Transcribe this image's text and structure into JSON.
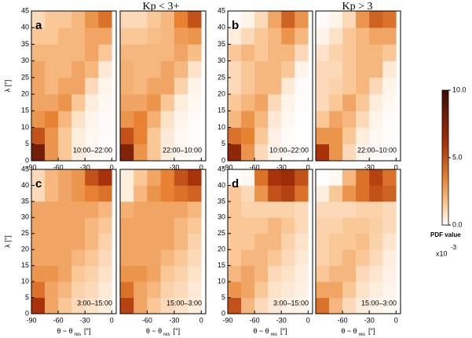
{
  "titles": [
    "Kp < 3+",
    "Kp > 3"
  ],
  "colorbar": {
    "zlim": [
      0,
      10
    ],
    "ticks": [
      {
        "value": 0,
        "label": "0.0"
      },
      {
        "value": 5,
        "label": "5.0"
      },
      {
        "value": 10,
        "label": "10.0"
      }
    ],
    "label": "PDF value",
    "unit_base": "x10",
    "unit_exp": "-3"
  },
  "chart_data": [
    {
      "type": "heatmap",
      "panel_label": "a",
      "annotation": "10:00–22:00",
      "y_label": "λ [°]",
      "xlim": [
        -90,
        5
      ],
      "ylim": [
        0,
        45
      ],
      "xticks": [
        -90,
        -60,
        -30,
        0
      ],
      "yticks": [
        0,
        5,
        10,
        15,
        20,
        25,
        30,
        35,
        40,
        45
      ],
      "xbins": [
        -90,
        -75,
        -60,
        -45,
        -30,
        -15,
        0
      ],
      "ybins": [
        0,
        5,
        10,
        15,
        20,
        25,
        30,
        35,
        40,
        45
      ],
      "z": [
        [
          8,
          3,
          1.5,
          0.5,
          0.2,
          0.1
        ],
        [
          5,
          3,
          1.5,
          0.5,
          0.2,
          0.1
        ],
        [
          3,
          3.5,
          2,
          0.8,
          0.3,
          0.1
        ],
        [
          2.5,
          2.5,
          3,
          1.5,
          0.5,
          0.2
        ],
        [
          2.5,
          2,
          2.5,
          2.5,
          1,
          0.3
        ],
        [
          2.5,
          2,
          2,
          2.5,
          2,
          0.6
        ],
        [
          2,
          2,
          2,
          2,
          2.5,
          1.5
        ],
        [
          1.5,
          1.5,
          2,
          2,
          2.5,
          2.5
        ],
        [
          1,
          1.5,
          1.5,
          2,
          3,
          4
        ]
      ]
    },
    {
      "type": "heatmap",
      "annotation": "22:00–10:00",
      "xlim": [
        -90,
        5
      ],
      "ylim": [
        0,
        45
      ],
      "xticks": [
        -30,
        0
      ],
      "xbins": [
        -90,
        -75,
        -60,
        -45,
        -30,
        -15,
        0
      ],
      "ybins": [
        0,
        5,
        10,
        15,
        20,
        25,
        30,
        35,
        40,
        45
      ],
      "z": [
        [
          7.5,
          3,
          1.5,
          0.5,
          0.2,
          0.1
        ],
        [
          5,
          3.5,
          1.5,
          0.6,
          0.2,
          0.1
        ],
        [
          3,
          3.5,
          2.2,
          0.8,
          0.3,
          0.1
        ],
        [
          2.5,
          2.5,
          3,
          1.5,
          0.5,
          0.2
        ],
        [
          2.2,
          2,
          2.5,
          2.5,
          1.2,
          0.3
        ],
        [
          2.2,
          2,
          2,
          2.5,
          2,
          0.8
        ],
        [
          2,
          2,
          2,
          2,
          2.5,
          1.8
        ],
        [
          1.5,
          1.5,
          1.8,
          2,
          2.8,
          3
        ],
        [
          1,
          1,
          1.5,
          2,
          3.5,
          5
        ]
      ]
    },
    {
      "type": "heatmap",
      "panel_label": "b",
      "annotation": "10:00–22:00",
      "y_label": "λ [°]",
      "xlim": [
        -90,
        5
      ],
      "ylim": [
        0,
        45
      ],
      "xticks": [
        -90,
        -60,
        -30,
        0
      ],
      "yticks": [
        0,
        5,
        10,
        15,
        20,
        25,
        30,
        35,
        40,
        45
      ],
      "xbins": [
        -90,
        -75,
        -60,
        -45,
        -30,
        -15,
        0
      ],
      "ybins": [
        0,
        5,
        10,
        15,
        20,
        25,
        30,
        35,
        40,
        45
      ],
      "z": [
        [
          7,
          3,
          1,
          0.3,
          0.1,
          0
        ],
        [
          4,
          3.5,
          1.5,
          0.4,
          0.1,
          0
        ],
        [
          2,
          3,
          2,
          0.6,
          0.2,
          0
        ],
        [
          1.5,
          2,
          2.5,
          1,
          0.3,
          0.1
        ],
        [
          1,
          1.5,
          2,
          2,
          0.6,
          0.1
        ],
        [
          1,
          1.5,
          2,
          2,
          1.5,
          0.3
        ],
        [
          1.5,
          2,
          1.5,
          2,
          2,
          1
        ],
        [
          0.5,
          1,
          1.5,
          2,
          3,
          2
        ],
        [
          0.1,
          0.3,
          1,
          2.5,
          4.5,
          3
        ]
      ]
    },
    {
      "type": "heatmap",
      "annotation": "22:00–10:00",
      "xlim": [
        -90,
        5
      ],
      "ylim": [
        0,
        45
      ],
      "xticks": [
        -30,
        0
      ],
      "xbins": [
        -90,
        -75,
        -60,
        -45,
        -30,
        -15,
        0
      ],
      "ybins": [
        0,
        5,
        10,
        15,
        20,
        25,
        30,
        35,
        40,
        45
      ],
      "z": [
        [
          6,
          3,
          1,
          0.3,
          0.1,
          0
        ],
        [
          3,
          3,
          1.5,
          0.5,
          0.2,
          0.1
        ],
        [
          1.5,
          2.5,
          2,
          1,
          0.3,
          0.1
        ],
        [
          1,
          1.5,
          2.5,
          1.5,
          0.5,
          0.2
        ],
        [
          1,
          1.2,
          1.5,
          2,
          1,
          0.3
        ],
        [
          1,
          1,
          1.5,
          2,
          2,
          0.6
        ],
        [
          0.8,
          1.2,
          1.5,
          2,
          2,
          1.5
        ],
        [
          0.3,
          0.8,
          1.5,
          2,
          2.5,
          2.5
        ],
        [
          0.1,
          0.3,
          1,
          3,
          4.5,
          4
        ]
      ]
    },
    {
      "type": "heatmap",
      "panel_label": "c",
      "annotation": "3:00–15:00",
      "y_label": "λ [°]",
      "x_label": "θ − θ",
      "x_label_sub": "res",
      "x_label_unit": "[°]",
      "xlim": [
        -90,
        5
      ],
      "ylim": [
        0,
        45
      ],
      "xticks": [
        -90,
        -60,
        -30,
        0
      ],
      "yticks": [
        0,
        5,
        10,
        15,
        20,
        25,
        30,
        35,
        40,
        45
      ],
      "xbins": [
        -90,
        -75,
        -60,
        -45,
        -30,
        -15,
        0
      ],
      "ybins": [
        0,
        5,
        10,
        15,
        20,
        25,
        30,
        35,
        40,
        45
      ],
      "z": [
        [
          6,
          2.5,
          1.5,
          1,
          0.8,
          0.5
        ],
        [
          4,
          2.5,
          2,
          1.2,
          1,
          0.6
        ],
        [
          3,
          3,
          2.5,
          1.5,
          1.2,
          0.8
        ],
        [
          2.5,
          2.5,
          2.5,
          2,
          1.5,
          1
        ],
        [
          2.5,
          2.5,
          2.5,
          2.5,
          2,
          1.2
        ],
        [
          2.5,
          2.5,
          2.5,
          2.5,
          2,
          1.5
        ],
        [
          2.5,
          2.5,
          2.5,
          2.5,
          2.5,
          2
        ],
        [
          1,
          2,
          2.5,
          3,
          3.5,
          4
        ],
        [
          1,
          2,
          2.5,
          3,
          5,
          6
        ]
      ]
    },
    {
      "type": "heatmap",
      "annotation": "15:00–3:00",
      "x_label": "θ − θ",
      "x_label_sub": "res",
      "x_label_unit": "[°]",
      "xlim": [
        -90,
        5
      ],
      "ylim": [
        0,
        45
      ],
      "xticks": [
        -60,
        -30,
        0
      ],
      "xbins": [
        -90,
        -75,
        -60,
        -45,
        -30,
        -15,
        0
      ],
      "ybins": [
        0,
        5,
        10,
        15,
        20,
        25,
        30,
        35,
        40,
        45
      ],
      "z": [
        [
          5.5,
          2.5,
          1.5,
          1,
          0.8,
          0.5
        ],
        [
          4,
          2.5,
          2,
          1.2,
          1,
          0.6
        ],
        [
          3,
          3,
          2.5,
          1.5,
          1.2,
          0.8
        ],
        [
          2.5,
          2.5,
          2.5,
          2,
          1.5,
          1
        ],
        [
          2.5,
          2.5,
          2.5,
          2.5,
          2,
          1.2
        ],
        [
          2.5,
          2.5,
          2.5,
          2.5,
          2,
          1.5
        ],
        [
          2.2,
          2.5,
          2.5,
          2.5,
          2.5,
          2
        ],
        [
          0.5,
          2,
          3,
          3.5,
          4,
          4.5
        ],
        [
          0.5,
          1.5,
          2.5,
          3.5,
          5,
          6
        ]
      ]
    },
    {
      "type": "heatmap",
      "panel_label": "d",
      "annotation": "3:00–15:00",
      "y_label": "λ [°]",
      "x_label": "θ − θ",
      "x_label_sub": "res",
      "x_label_unit": "[°]",
      "xlim": [
        -90,
        5
      ],
      "ylim": [
        0,
        45
      ],
      "xticks": [
        -90,
        -60,
        -30,
        0
      ],
      "yticks": [
        0,
        5,
        10,
        15,
        20,
        25,
        30,
        35,
        40,
        45
      ],
      "xbins": [
        -90,
        -75,
        -60,
        -45,
        -30,
        -15,
        0
      ],
      "ybins": [
        0,
        5,
        10,
        15,
        20,
        25,
        30,
        35,
        40,
        45
      ],
      "z": [
        [
          5,
          2,
          1,
          0.6,
          0.4,
          0.3
        ],
        [
          3,
          2.5,
          1.5,
          0.8,
          0.6,
          0.4
        ],
        [
          2,
          2.5,
          2,
          1,
          0.8,
          0.5
        ],
        [
          1.5,
          2,
          2,
          1.5,
          1,
          0.6
        ],
        [
          1.5,
          1.5,
          2,
          2,
          1.2,
          0.8
        ],
        [
          1.5,
          1.5,
          1.5,
          2,
          1.5,
          1
        ],
        [
          1.5,
          1.2,
          1.2,
          1.2,
          1.2,
          1
        ],
        [
          1.5,
          1,
          3,
          5,
          5.5,
          4
        ],
        [
          0,
          0.2,
          4,
          6,
          6.5,
          5
        ]
      ]
    },
    {
      "type": "heatmap",
      "annotation": "15:00–3:00",
      "x_label": "θ − θ",
      "x_label_sub": "res",
      "x_label_unit": "[°]",
      "xlim": [
        -90,
        5
      ],
      "ylim": [
        0,
        45
      ],
      "xticks": [
        -60,
        -30,
        0
      ],
      "xbins": [
        -90,
        -75,
        -60,
        -45,
        -30,
        -15,
        0
      ],
      "ybins": [
        0,
        5,
        10,
        15,
        20,
        25,
        30,
        35,
        40,
        45
      ],
      "z": [
        [
          4,
          2,
          1,
          0.5,
          0.3,
          0.2
        ],
        [
          2.5,
          2.5,
          1.5,
          0.8,
          0.5,
          0.3
        ],
        [
          1.5,
          2,
          2,
          1,
          0.7,
          0.4
        ],
        [
          1.2,
          1.5,
          2,
          1.5,
          1,
          0.5
        ],
        [
          1.2,
          1.5,
          1.5,
          1.8,
          1.2,
          0.7
        ],
        [
          1.2,
          1.2,
          1.5,
          1.5,
          1.3,
          1
        ],
        [
          1,
          1,
          1,
          1.2,
          1.2,
          1
        ],
        [
          0.5,
          1.5,
          3,
          4,
          5,
          4.5
        ],
        [
          0,
          0.2,
          2,
          4,
          5.5,
          4
        ]
      ]
    }
  ]
}
